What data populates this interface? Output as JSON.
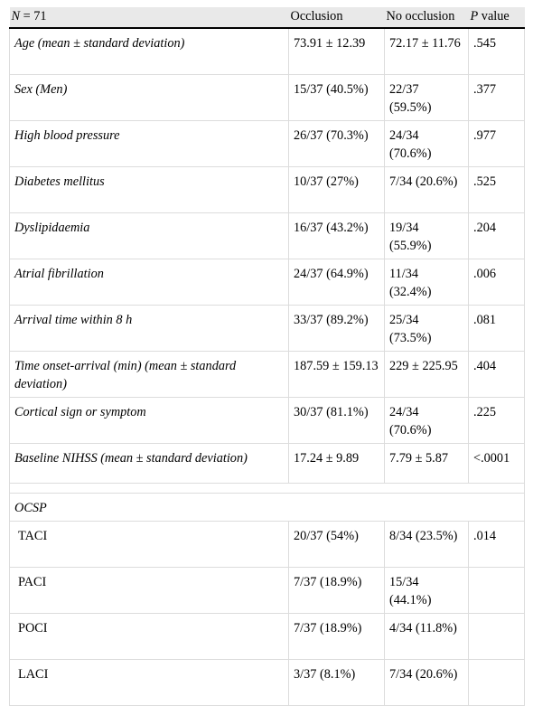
{
  "header": {
    "n_label": "N = 71",
    "col_occlusion": "Occlusion",
    "col_no_occlusion": "No occlusion",
    "col_p": "P value"
  },
  "rows": [
    {
      "label": "Age (mean ± standard deviation)",
      "occlusion": "73.91 ± 12.39",
      "no_occlusion": "72.17 ± 11.76",
      "p": ".545"
    },
    {
      "label": "Sex (Men)",
      "occlusion": "15/37 (40.5%)",
      "no_occlusion": "22/37 (59.5%)",
      "p": ".377"
    },
    {
      "label": "High blood pressure",
      "occlusion": "26/37 (70.3%)",
      "no_occlusion": "24/34 (70.6%)",
      "p": ".977"
    },
    {
      "label": "Diabetes mellitus",
      "occlusion": "10/37 (27%)",
      "no_occlusion": "7/34 (20.6%)",
      "p": ".525"
    },
    {
      "label": "Dyslipidaemia",
      "occlusion": "16/37 (43.2%)",
      "no_occlusion": "19/34 (55.9%)",
      "p": ".204"
    },
    {
      "label": "Atrial fibrillation",
      "occlusion": "24/37 (64.9%)",
      "no_occlusion": "11/34 (32.4%)",
      "p": ".006"
    },
    {
      "label": "Arrival time within 8 h",
      "occlusion": "33/37 (89.2%)",
      "no_occlusion": "25/34 (73.5%)",
      "p": ".081"
    },
    {
      "label": "Time onset-arrival (min) (mean ± standard deviation)",
      "occlusion": "187.59 ± 159.13",
      "no_occlusion": "229 ± 225.95",
      "p": ".404"
    },
    {
      "label": "Cortical sign or symptom",
      "occlusion": "30/37 (81.1%)",
      "no_occlusion": "24/34 (70.6%)",
      "p": ".225"
    },
    {
      "label": "Baseline NIHSS (mean ± standard deviation)",
      "occlusion": "17.24 ± 9.89",
      "no_occlusion": "7.79 ± 5.87",
      "p": "<.0001"
    }
  ],
  "section_title": "OCSP",
  "ocsp_rows": [
    {
      "label": "TACI",
      "occlusion": "20/37 (54%)",
      "no_occlusion": "8/34 (23.5%)",
      "p": ".014"
    },
    {
      "label": "PACI",
      "occlusion": "7/37 (18.9%)",
      "no_occlusion": "15/34 (44.1%)",
      "p": ""
    },
    {
      "label": "POCI",
      "occlusion": "7/37 (18.9%)",
      "no_occlusion": "4/34 (11.8%)",
      "p": ""
    },
    {
      "label": "LACI",
      "occlusion": "3/37 (8.1%)",
      "no_occlusion": "7/34 (20.6%)",
      "p": ""
    }
  ]
}
